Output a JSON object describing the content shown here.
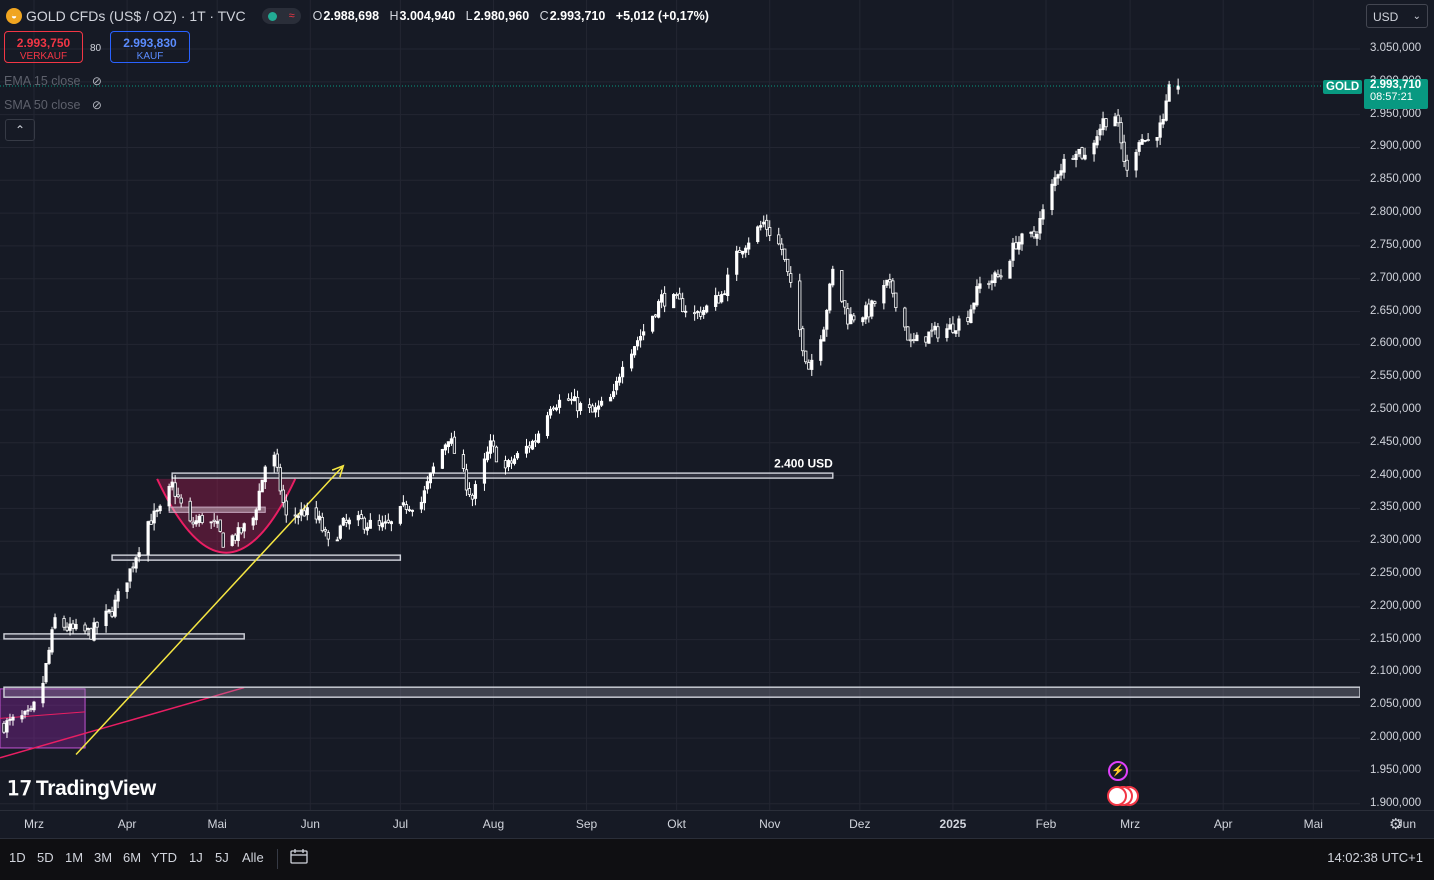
{
  "header": {
    "symbol": "GOLD CFDs (US$ / OZ) · 1T · TVC",
    "logo_icon": "gold-coin-icon",
    "status_color": "#22ab94",
    "open_label": "O",
    "open": "2.988,698",
    "high_label": "H",
    "high": "3.004,940",
    "low_label": "L",
    "low": "2.980,960",
    "close_label": "C",
    "close": "2.993,710",
    "change": "+5,012 (+0,17%)"
  },
  "trade": {
    "sell_price": "2.993,750",
    "sell_label": "VERKAUF",
    "spread": "80",
    "buy_price": "2.993,830",
    "buy_label": "KAUF"
  },
  "indicators": [
    {
      "label": "EMA 15 close",
      "icon": "eye-hidden-icon"
    },
    {
      "label": "SMA 50 close",
      "icon": "eye-hidden-icon"
    }
  ],
  "currency": "USD",
  "price_axis": {
    "ticks": [
      "3.050,000",
      "3.000,000",
      "2.950,000",
      "2.900,000",
      "2.850,000",
      "2.800,000",
      "2.750,000",
      "2.700,000",
      "2.650,000",
      "2.600,000",
      "2.550,000",
      "2.500,000",
      "2.450,000",
      "2.400,000",
      "2.350,000",
      "2.300,000",
      "2.250,000",
      "2.200,000",
      "2.150,000",
      "2.100,000",
      "2.050,000",
      "2.000,000",
      "1.950,000",
      "1.900,000"
    ],
    "symbol_tag": "GOLD",
    "last_price": "2.993,710",
    "countdown": "08:57:21"
  },
  "time_axis": {
    "ticks": [
      "Mrz",
      "Apr",
      "Mai",
      "Jun",
      "Jul",
      "Aug",
      "Sep",
      "Okt",
      "Nov",
      "Dez",
      "2025",
      "Feb",
      "Mrz",
      "Apr",
      "Mai",
      "Jun"
    ]
  },
  "ranges": [
    "1D",
    "5D",
    "1M",
    "3M",
    "6M",
    "YTD",
    "1J",
    "5J",
    "Alle"
  ],
  "clock": "14:02:38 UTC+1",
  "brand": "TradingView",
  "annotation_label": "2.400 USD",
  "colors": {
    "up": "#089981",
    "down": "#f23645",
    "candle_up": "#ffffff",
    "bg": "#161a25",
    "arrow": "#f5e642",
    "cup": "#e91e63"
  },
  "chart_data": {
    "type": "candlestick",
    "title": "GOLD CFDs (US$ / OZ) · 1T · TVC",
    "ylim": [
      1900,
      3050
    ],
    "y_axis_scale": "linear",
    "grid": true,
    "months": [
      {
        "label": "Mrz",
        "date": "2024-03-01"
      },
      {
        "label": "Apr",
        "date": "2024-04-01"
      },
      {
        "label": "Mai",
        "date": "2024-05-01"
      },
      {
        "label": "Jun",
        "date": "2024-06-01"
      },
      {
        "label": "Jul",
        "date": "2024-07-01"
      },
      {
        "label": "Aug",
        "date": "2024-08-01"
      },
      {
        "label": "Sep",
        "date": "2024-09-01"
      },
      {
        "label": "Okt",
        "date": "2024-10-01"
      },
      {
        "label": "Nov",
        "date": "2024-11-01"
      },
      {
        "label": "Dez",
        "date": "2024-12-01"
      },
      {
        "label": "2025",
        "date": "2025-01-01"
      },
      {
        "label": "Feb",
        "date": "2025-02-01"
      },
      {
        "label": "Mrz",
        "date": "2025-03-01"
      },
      {
        "label": "Apr",
        "date": "2025-04-01"
      },
      {
        "label": "Mai",
        "date": "2025-05-01"
      },
      {
        "label": "Jun",
        "date": "2025-06-01"
      }
    ],
    "close_path": [
      [
        "2024-02-20",
        2020
      ],
      [
        "2024-02-29",
        2035
      ],
      [
        "2024-03-04",
        2085
      ],
      [
        "2024-03-08",
        2180
      ],
      [
        "2024-03-13",
        2165
      ],
      [
        "2024-03-20",
        2160
      ],
      [
        "2024-03-27",
        2195
      ],
      [
        "2024-04-02",
        2255
      ],
      [
        "2024-04-08",
        2330
      ],
      [
        "2024-04-12",
        2345
      ],
      [
        "2024-04-16",
        2385
      ],
      [
        "2024-04-22",
        2325
      ],
      [
        "2024-04-26",
        2335
      ],
      [
        "2024-05-01",
        2320
      ],
      [
        "2024-05-03",
        2300
      ],
      [
        "2024-05-08",
        2310
      ],
      [
        "2024-05-13",
        2335
      ],
      [
        "2024-05-17",
        2415
      ],
      [
        "2024-05-20",
        2425
      ],
      [
        "2024-05-24",
        2335
      ],
      [
        "2024-05-30",
        2345
      ],
      [
        "2024-06-04",
        2330
      ],
      [
        "2024-06-07",
        2295
      ],
      [
        "2024-06-12",
        2325
      ],
      [
        "2024-06-18",
        2330
      ],
      [
        "2024-06-24",
        2320
      ],
      [
        "2024-06-28",
        2325
      ],
      [
        "2024-07-03",
        2355
      ],
      [
        "2024-07-08",
        2360
      ],
      [
        "2024-07-12",
        2410
      ],
      [
        "2024-07-17",
        2460
      ],
      [
        "2024-07-22",
        2400
      ],
      [
        "2024-07-25",
        2365
      ],
      [
        "2024-07-31",
        2445
      ],
      [
        "2024-08-05",
        2410
      ],
      [
        "2024-08-08",
        2425
      ],
      [
        "2024-08-15",
        2455
      ],
      [
        "2024-08-20",
        2510
      ],
      [
        "2024-08-26",
        2515
      ],
      [
        "2024-09-03",
        2495
      ],
      [
        "2024-09-10",
        2520
      ],
      [
        "2024-09-13",
        2575
      ],
      [
        "2024-09-20",
        2620
      ],
      [
        "2024-09-26",
        2670
      ],
      [
        "2024-10-01",
        2665
      ],
      [
        "2024-10-07",
        2645
      ],
      [
        "2024-10-11",
        2655
      ],
      [
        "2024-10-16",
        2675
      ],
      [
        "2024-10-22",
        2745
      ],
      [
        "2024-10-30",
        2785
      ],
      [
        "2024-11-05",
        2745
      ],
      [
        "2024-11-08",
        2685
      ],
      [
        "2024-11-12",
        2600
      ],
      [
        "2024-11-14",
        2565
      ],
      [
        "2024-11-19",
        2630
      ],
      [
        "2024-11-22",
        2710
      ],
      [
        "2024-11-27",
        2640
      ],
      [
        "2024-12-04",
        2650
      ],
      [
        "2024-12-10",
        2690
      ],
      [
        "2024-12-12",
        2680
      ],
      [
        "2024-12-18",
        2600
      ],
      [
        "2024-12-24",
        2615
      ],
      [
        "2024-12-31",
        2625
      ],
      [
        "2025-01-06",
        2645
      ],
      [
        "2025-01-10",
        2690
      ],
      [
        "2025-01-17",
        2705
      ],
      [
        "2025-01-22",
        2755
      ],
      [
        "2025-01-28",
        2765
      ],
      [
        "2025-01-31",
        2800
      ],
      [
        "2025-02-05",
        2865
      ],
      [
        "2025-02-11",
        2900
      ],
      [
        "2025-02-14",
        2885
      ],
      [
        "2025-02-20",
        2940
      ],
      [
        "2025-02-24",
        2950
      ],
      [
        "2025-02-28",
        2860
      ],
      [
        "2025-03-04",
        2915
      ],
      [
        "2025-03-07",
        2910
      ],
      [
        "2025-03-12",
        2935
      ],
      [
        "2025-03-14",
        2985
      ],
      [
        "2025-03-17",
        2993.71
      ]
    ],
    "horizontal_levels": [
      {
        "label": "2.400 USD",
        "price": 2400,
        "from": "2024-04-16",
        "to": "2024-11-22"
      },
      {
        "price": 2275,
        "from": "2024-03-27",
        "to": "2024-07-01"
      },
      {
        "price": 2155,
        "from": "2024-02-20",
        "to": "2024-05-10"
      },
      {
        "price": 2070,
        "from": "2024-02-20",
        "to": "2025-06-10"
      }
    ],
    "last": {
      "open": 2988.698,
      "high": 3004.94,
      "low": 2980.96,
      "close": 2993.71
    }
  }
}
